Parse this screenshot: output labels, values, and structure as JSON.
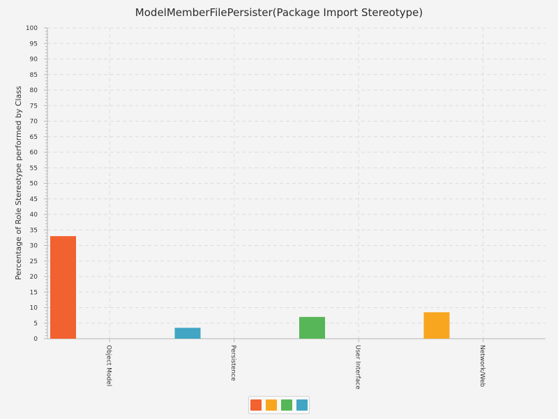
{
  "chart_data": {
    "type": "bar",
    "title": "ModelMemberFilePersister(Package Import Stereotype)",
    "xlabel": "",
    "ylabel": "Percentage of Role Stereotype performed by Class",
    "categories": [
      "Object Model",
      "Persistence",
      "User Interface",
      "Network/Web"
    ],
    "series": [
      {
        "color": "#f26130",
        "values": [
          33,
          0,
          0,
          0
        ]
      },
      {
        "color": "#f8a61f",
        "values": [
          0,
          0,
          0,
          8.5
        ]
      },
      {
        "color": "#57b657",
        "values": [
          0,
          0,
          7,
          0
        ]
      },
      {
        "color": "#41a5c3",
        "values": [
          0,
          3.5,
          0,
          0
        ]
      }
    ],
    "ylim": [
      0,
      100
    ],
    "major_tick_step": 5,
    "minor_tick_step": 1,
    "grid": true,
    "legend_position": "bottom-center"
  }
}
